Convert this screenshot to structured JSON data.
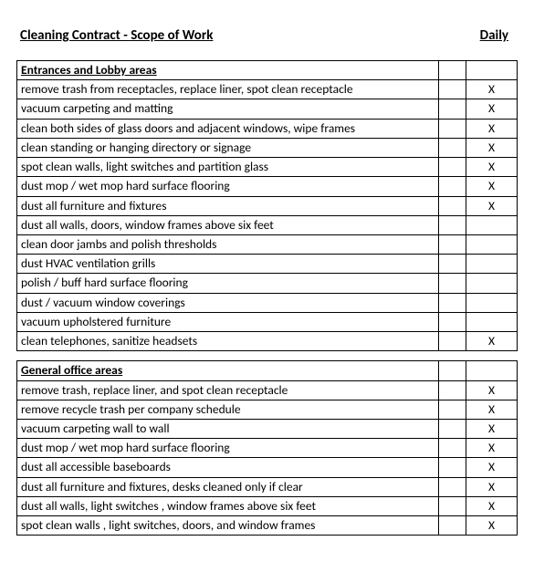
{
  "header": {
    "title": "Cleaning Contract - Scope of Work",
    "column_label": "Daily"
  },
  "sections": [
    {
      "name": "Entrances and Lobby areas",
      "rows": [
        {
          "task": "remove trash from receptacles, replace liner, spot clean receptacle",
          "daily": "X"
        },
        {
          "task": "vacuum carpeting and matting",
          "daily": "X"
        },
        {
          "task": "clean both sides of glass doors and adjacent windows, wipe frames",
          "daily": "X"
        },
        {
          "task": "clean standing or hanging directory or signage",
          "daily": "X"
        },
        {
          "task": "spot clean walls, light switches and partition glass",
          "daily": "X"
        },
        {
          "task": "dust mop / wet mop hard surface flooring",
          "daily": "X"
        },
        {
          "task": "dust all furniture and fixtures",
          "daily": "X"
        },
        {
          "task": "dust all walls, doors, window frames above six feet",
          "daily": ""
        },
        {
          "task": "clean door jambs and polish thresholds",
          "daily": ""
        },
        {
          "task": "dust HVAC ventilation grills",
          "daily": ""
        },
        {
          "task": "polish / buff hard surface flooring",
          "daily": ""
        },
        {
          "task": "dust / vacuum window coverings",
          "daily": ""
        },
        {
          "task": "vacuum upholstered furniture",
          "daily": ""
        },
        {
          "task": "clean telephones, sanitize headsets",
          "daily": "X"
        }
      ]
    },
    {
      "name": "General office areas",
      "rows": [
        {
          "task": "remove trash, replace liner, and spot clean receptacle",
          "daily": "X"
        },
        {
          "task": "remove recycle trash per company schedule",
          "daily": "X"
        },
        {
          "task": "vacuum carpeting wall to wall",
          "daily": "X"
        },
        {
          "task": "dust mop / wet mop hard surface flooring",
          "daily": "X"
        },
        {
          "task": "dust all accessible baseboards",
          "daily": "X"
        },
        {
          "task": "dust all furniture and fixtures, desks cleaned only if clear",
          "daily": "X"
        },
        {
          "task": "dust all walls, light switches , window frames above six feet",
          "daily": "X"
        },
        {
          "task": "spot clean walls , light switches, doors, and window frames",
          "daily": "X"
        }
      ]
    }
  ],
  "style": {
    "font_family": "Calibri, Arial, sans-serif",
    "title_fontsize": 15,
    "cell_fontsize": 13.5,
    "border_color": "#000000",
    "background_color": "#ffffff",
    "text_color": "#000000",
    "task_col_width": 462,
    "spacer_col_width": 30,
    "mark_col_width": 56
  }
}
